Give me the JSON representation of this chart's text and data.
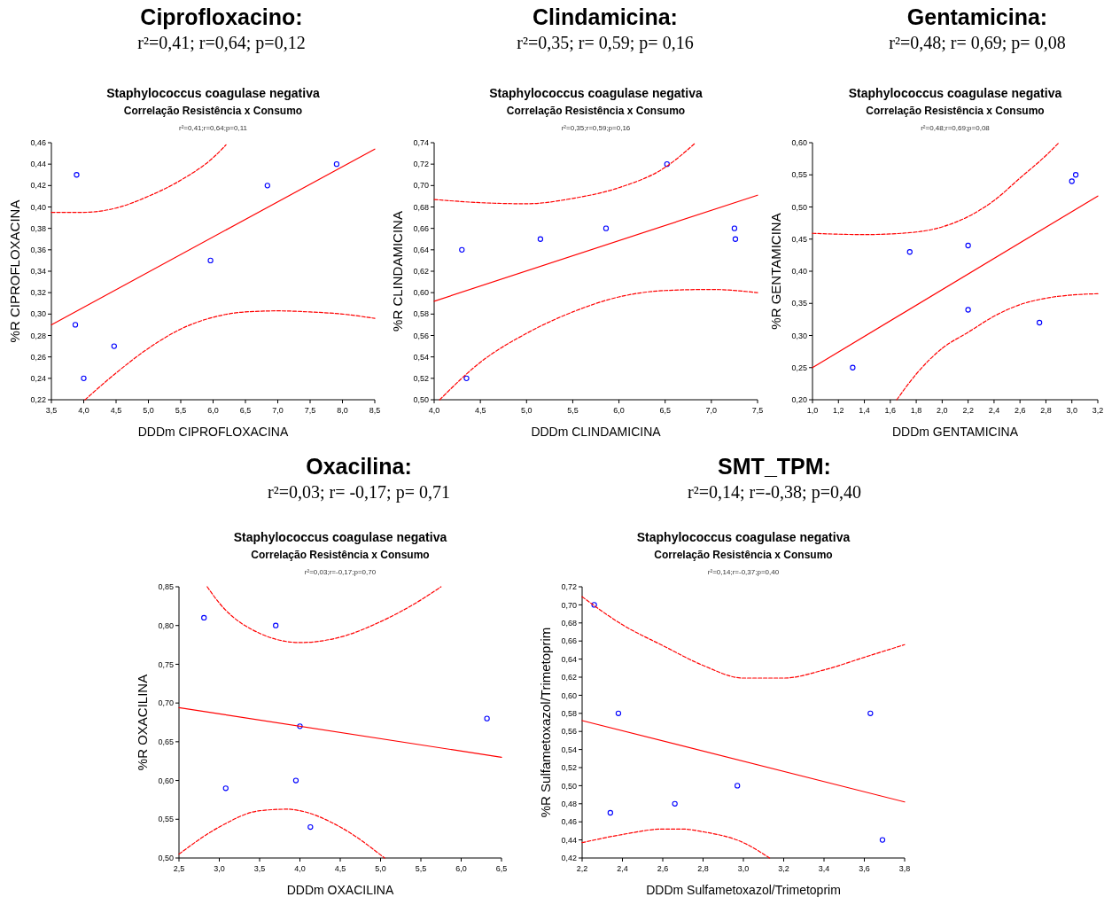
{
  "chart_data": [
    {
      "type": "scatter",
      "title": "Ciprofloxacino:",
      "subtitle": "r²=0,41; r=0,64; p=0,12",
      "annotations": [
        "Staphylococcus coagulase negativa",
        "Correlação Resistência x Consumo",
        "r²=0,41;r=0,64;p=0,11"
      ],
      "xlabel": "DDDm CIPROFLOXACINA",
      "ylabel": "%R CIPROFLOXACINA",
      "grid": false,
      "xlim": [
        3.5,
        8.5
      ],
      "xticks": [
        {
          "value": 3.5,
          "label": "3,5"
        },
        {
          "value": 4,
          "label": "4,0"
        },
        {
          "value": 4.5,
          "label": "4,5"
        },
        {
          "value": 5,
          "label": "5,0"
        },
        {
          "value": 5.5,
          "label": "5,5"
        },
        {
          "value": 6,
          "label": "6,0"
        },
        {
          "value": 6.5,
          "label": "6,5"
        },
        {
          "value": 7,
          "label": "7,0"
        },
        {
          "value": 7.5,
          "label": "7,5"
        },
        {
          "value": 8,
          "label": "8,0"
        },
        {
          "value": 8.5,
          "label": "8,5"
        }
      ],
      "ylim": [
        0.22,
        0.46
      ],
      "yticks": [
        {
          "value": 0.22,
          "label": "0,22"
        },
        {
          "value": 0.24,
          "label": "0,24"
        },
        {
          "value": 0.26,
          "label": "0,26"
        },
        {
          "value": 0.28,
          "label": "0,28"
        },
        {
          "value": 0.3,
          "label": "0,30"
        },
        {
          "value": 0.32,
          "label": "0,32"
        },
        {
          "value": 0.34,
          "label": "0,34"
        },
        {
          "value": 0.36,
          "label": "0,36"
        },
        {
          "value": 0.38,
          "label": "0,38"
        },
        {
          "value": 0.4,
          "label": "0,40"
        },
        {
          "value": 0.42,
          "label": "0,42"
        },
        {
          "value": 0.44,
          "label": "0,44"
        },
        {
          "value": 0.46,
          "label": "0,46"
        }
      ],
      "series": [
        {
          "type": "scatter",
          "marker": "circle",
          "color": "#0000ff",
          "x": [
            3.89,
            3.87,
            4.0,
            4.47,
            5.96,
            6.84,
            7.91
          ],
          "values": [
            0.43,
            0.29,
            0.24,
            0.27,
            0.35,
            0.42,
            0.44
          ]
        },
        {
          "type": "line",
          "line_style": "solid",
          "color": "#ff0000",
          "x": [
            3.5,
            8.5
          ],
          "values": [
            0.29,
            0.454
          ]
        },
        {
          "type": "line",
          "line_style": "dashed",
          "color": "#ff0000",
          "x": [
            3.5,
            4.0,
            4.5,
            5.0,
            5.5,
            6.0,
            6.2
          ],
          "values": [
            0.395,
            0.395,
            0.399,
            0.41,
            0.425,
            0.446,
            0.458
          ]
        },
        {
          "type": "line",
          "line_style": "dashed",
          "color": "#ff0000",
          "x": [
            4.02,
            4.5,
            5.0,
            5.5,
            6.0,
            6.5,
            7.0,
            7.5,
            8.0,
            8.5
          ],
          "values": [
            0.22,
            0.245,
            0.268,
            0.286,
            0.297,
            0.302,
            0.303,
            0.302,
            0.3,
            0.296
          ]
        }
      ]
    },
    {
      "type": "scatter",
      "title": "Clindamicina:",
      "subtitle": "r²=0,35; r= 0,59; p= 0,16",
      "annotations": [
        "Staphylococcus coagulase negativa",
        "Correlação Resistência x Consumo",
        "r²=0,35;r=0,59;p=0,16"
      ],
      "xlabel": "DDDm CLINDAMICINA",
      "ylabel": "%R CLINDAMICINA",
      "grid": false,
      "xlim": [
        4,
        7.5
      ],
      "xticks": [
        {
          "value": 4,
          "label": "4,0"
        },
        {
          "value": 4.5,
          "label": "4,5"
        },
        {
          "value": 5,
          "label": "5,0"
        },
        {
          "value": 5.5,
          "label": "5,5"
        },
        {
          "value": 6,
          "label": "6,0"
        },
        {
          "value": 6.5,
          "label": "6,5"
        },
        {
          "value": 7,
          "label": "7,0"
        },
        {
          "value": 7.5,
          "label": "7,5"
        }
      ],
      "ylim": [
        0.5,
        0.74
      ],
      "yticks": [
        {
          "value": 0.5,
          "label": "0,50"
        },
        {
          "value": 0.52,
          "label": "0,52"
        },
        {
          "value": 0.54,
          "label": "0,54"
        },
        {
          "value": 0.56,
          "label": "0,56"
        },
        {
          "value": 0.58,
          "label": "0,58"
        },
        {
          "value": 0.6,
          "label": "0,60"
        },
        {
          "value": 0.62,
          "label": "0,62"
        },
        {
          "value": 0.64,
          "label": "0,64"
        },
        {
          "value": 0.66,
          "label": "0,66"
        },
        {
          "value": 0.68,
          "label": "0,68"
        },
        {
          "value": 0.7,
          "label": "0,70"
        },
        {
          "value": 0.72,
          "label": "0,72"
        },
        {
          "value": 0.74,
          "label": "0,74"
        }
      ],
      "series": [
        {
          "type": "scatter",
          "marker": "circle",
          "color": "#0000ff",
          "x": [
            4.3,
            4.35,
            5.15,
            5.86,
            6.52,
            7.25,
            7.26
          ],
          "values": [
            0.64,
            0.52,
            0.65,
            0.66,
            0.72,
            0.66,
            0.65
          ]
        },
        {
          "type": "line",
          "line_style": "solid",
          "color": "#ff0000",
          "x": [
            4,
            7.5
          ],
          "values": [
            0.592,
            0.691
          ]
        },
        {
          "type": "line",
          "line_style": "dashed",
          "color": "#ff0000",
          "x": [
            4,
            4.5,
            5.0,
            5.5,
            6.0,
            6.5,
            6.83
          ],
          "values": [
            0.687,
            0.684,
            0.683,
            0.688,
            0.698,
            0.717,
            0.74
          ]
        },
        {
          "type": "line",
          "line_style": "dashed",
          "color": "#ff0000",
          "x": [
            4.06,
            4.5,
            5.0,
            5.5,
            6.0,
            6.5,
            7.0,
            7.5
          ],
          "values": [
            0.5,
            0.535,
            0.562,
            0.582,
            0.596,
            0.602,
            0.603,
            0.6
          ]
        }
      ]
    },
    {
      "type": "scatter",
      "title": "Gentamicina:",
      "subtitle": "r²=0,48; r= 0,69; p= 0,08",
      "annotations": [
        "Staphylococcus coagulase negativa",
        "Correlação Resistência x Consumo",
        "r²=0,48;r=0,69;p=0,08"
      ],
      "xlabel": "DDDm GENTAMICINA",
      "ylabel": "%R GENTAMICINA",
      "grid": false,
      "xlim": [
        1,
        3.2
      ],
      "xticks": [
        {
          "value": 1,
          "label": "1,0"
        },
        {
          "value": 1.2,
          "label": "1,2"
        },
        {
          "value": 1.4,
          "label": "1,4"
        },
        {
          "value": 1.6,
          "label": "1,6"
        },
        {
          "value": 1.8,
          "label": "1,8"
        },
        {
          "value": 2,
          "label": "2,0"
        },
        {
          "value": 2.2,
          "label": "2,2"
        },
        {
          "value": 2.4,
          "label": "2,4"
        },
        {
          "value": 2.6,
          "label": "2,6"
        },
        {
          "value": 2.8,
          "label": "2,8"
        },
        {
          "value": 3,
          "label": "3,0"
        },
        {
          "value": 3.2,
          "label": "3,2"
        }
      ],
      "ylim": [
        0.2,
        0.6
      ],
      "yticks": [
        {
          "value": 0.2,
          "label": "0,20"
        },
        {
          "value": 0.25,
          "label": "0,25"
        },
        {
          "value": 0.3,
          "label": "0,30"
        },
        {
          "value": 0.35,
          "label": "0,35"
        },
        {
          "value": 0.4,
          "label": "0,40"
        },
        {
          "value": 0.45,
          "label": "0,45"
        },
        {
          "value": 0.5,
          "label": "0,50"
        },
        {
          "value": 0.55,
          "label": "0,55"
        },
        {
          "value": 0.6,
          "label": "0,60"
        }
      ],
      "series": [
        {
          "type": "scatter",
          "marker": "circle",
          "color": "#0000ff",
          "x": [
            1.31,
            1.75,
            2.2,
            2.2,
            2.75,
            3.0,
            3.03
          ],
          "values": [
            0.25,
            0.43,
            0.44,
            0.34,
            0.32,
            0.54,
            0.55
          ]
        },
        {
          "type": "line",
          "line_style": "solid",
          "color": "#ff0000",
          "x": [
            1,
            3.2
          ],
          "values": [
            0.25,
            0.517
          ]
        },
        {
          "type": "line",
          "line_style": "dashed",
          "color": "#ff0000",
          "x": [
            1,
            1.4,
            1.8,
            2.0,
            2.2,
            2.4,
            2.6,
            2.8,
            2.9
          ],
          "values": [
            0.459,
            0.457,
            0.461,
            0.469,
            0.485,
            0.51,
            0.545,
            0.58,
            0.6
          ]
        },
        {
          "type": "line",
          "line_style": "dashed",
          "color": "#ff0000",
          "x": [
            1.65,
            1.8,
            2.0,
            2.2,
            2.4,
            2.6,
            2.8,
            3.0,
            3.2
          ],
          "values": [
            0.2,
            0.24,
            0.28,
            0.305,
            0.33,
            0.348,
            0.358,
            0.363,
            0.365
          ]
        }
      ]
    },
    {
      "type": "scatter",
      "title": "Oxacilina:",
      "subtitle": "r²=0,03; r= -0,17; p= 0,71",
      "annotations": [
        "Staphylococcus coagulase negativa",
        "Correlação Resistência x Consumo",
        "r²=0,03;r=-0,17;p=0,70"
      ],
      "xlabel": "DDDm OXACILINA",
      "ylabel": "%R OXACILINA",
      "grid": false,
      "xlim": [
        2.5,
        6.5
      ],
      "xticks": [
        {
          "value": 2.5,
          "label": "2,5"
        },
        {
          "value": 3,
          "label": "3,0"
        },
        {
          "value": 3.5,
          "label": "3,5"
        },
        {
          "value": 4,
          "label": "4,0"
        },
        {
          "value": 4.5,
          "label": "4,5"
        },
        {
          "value": 5,
          "label": "5,0"
        },
        {
          "value": 5.5,
          "label": "5,5"
        },
        {
          "value": 6,
          "label": "6,0"
        },
        {
          "value": 6.5,
          "label": "6,5"
        }
      ],
      "ylim": [
        0.5,
        0.85
      ],
      "yticks": [
        {
          "value": 0.5,
          "label": "0,50"
        },
        {
          "value": 0.55,
          "label": "0,55"
        },
        {
          "value": 0.6,
          "label": "0,60"
        },
        {
          "value": 0.65,
          "label": "0,65"
        },
        {
          "value": 0.7,
          "label": "0,70"
        },
        {
          "value": 0.75,
          "label": "0,75"
        },
        {
          "value": 0.8,
          "label": "0,80"
        },
        {
          "value": 0.85,
          "label": "0,85"
        }
      ],
      "series": [
        {
          "type": "scatter",
          "marker": "circle",
          "color": "#0000ff",
          "x": [
            2.81,
            3.08,
            3.7,
            3.95,
            4.0,
            4.13,
            6.32
          ],
          "values": [
            0.81,
            0.59,
            0.8,
            0.6,
            0.67,
            0.54,
            0.68
          ]
        },
        {
          "type": "line",
          "line_style": "solid",
          "color": "#ff0000",
          "x": [
            2.5,
            6.5
          ],
          "values": [
            0.694,
            0.63
          ]
        },
        {
          "type": "line",
          "line_style": "dashed",
          "color": "#ff0000",
          "x": [
            2.85,
            3.0,
            3.5,
            4.0,
            4.5,
            5.0,
            5.5,
            5.75
          ],
          "values": [
            0.85,
            0.829,
            0.79,
            0.778,
            0.785,
            0.805,
            0.833,
            0.85
          ]
        },
        {
          "type": "line",
          "line_style": "dashed",
          "color": "#ff0000",
          "x": [
            2.5,
            3.0,
            3.5,
            3.85,
            4.0,
            4.5,
            5.05
          ],
          "values": [
            0.505,
            0.54,
            0.561,
            0.563,
            0.561,
            0.54,
            0.5
          ]
        }
      ]
    },
    {
      "type": "scatter",
      "title": "SMT_TPM:",
      "subtitle": "r²=0,14; r=-0,38; p=0,40",
      "annotations": [
        "Staphylococcus coagulase negativa",
        "Correlação Resistência x Consumo",
        "r²=0,14;r=-0,37;p=0,40"
      ],
      "xlabel": "DDDm Sulfametoxazol/Trimetoprim",
      "ylabel": "%R Sulfametoxazol/Trimetoprim",
      "grid": false,
      "xlim": [
        2.2,
        3.8
      ],
      "xticks": [
        {
          "value": 2.2,
          "label": "2,2"
        },
        {
          "value": 2.4,
          "label": "2,4"
        },
        {
          "value": 2.6,
          "label": "2,6"
        },
        {
          "value": 2.8,
          "label": "2,8"
        },
        {
          "value": 3,
          "label": "3,0"
        },
        {
          "value": 3.2,
          "label": "3,2"
        },
        {
          "value": 3.4,
          "label": "3,4"
        },
        {
          "value": 3.6,
          "label": "3,6"
        },
        {
          "value": 3.8,
          "label": "3,8"
        }
      ],
      "ylim": [
        0.42,
        0.72
      ],
      "yticks": [
        {
          "value": 0.42,
          "label": "0,42"
        },
        {
          "value": 0.44,
          "label": "0,44"
        },
        {
          "value": 0.46,
          "label": "0,46"
        },
        {
          "value": 0.48,
          "label": "0,48"
        },
        {
          "value": 0.5,
          "label": "0,50"
        },
        {
          "value": 0.52,
          "label": "0,52"
        },
        {
          "value": 0.54,
          "label": "0,54"
        },
        {
          "value": 0.56,
          "label": "0,56"
        },
        {
          "value": 0.58,
          "label": "0,58"
        },
        {
          "value": 0.6,
          "label": "0,60"
        },
        {
          "value": 0.62,
          "label": "0,62"
        },
        {
          "value": 0.64,
          "label": "0,64"
        },
        {
          "value": 0.66,
          "label": "0,66"
        },
        {
          "value": 0.68,
          "label": "0,68"
        },
        {
          "value": 0.7,
          "label": "0,70"
        },
        {
          "value": 0.72,
          "label": "0,72"
        }
      ],
      "series": [
        {
          "type": "scatter",
          "marker": "circle",
          "color": "#0000ff",
          "x": [
            2.26,
            2.34,
            2.38,
            2.66,
            2.97,
            3.63,
            3.69
          ],
          "values": [
            0.7,
            0.47,
            0.58,
            0.48,
            0.5,
            0.58,
            0.44
          ]
        },
        {
          "type": "line",
          "line_style": "solid",
          "color": "#ff0000",
          "x": [
            2.2,
            3.8
          ],
          "values": [
            0.572,
            0.482
          ]
        },
        {
          "type": "line",
          "line_style": "dashed",
          "color": "#ff0000",
          "x": [
            2.2,
            2.4,
            2.6,
            2.8,
            3.0,
            3.2,
            3.4,
            3.6,
            3.8
          ],
          "values": [
            0.709,
            0.678,
            0.655,
            0.633,
            0.619,
            0.619,
            0.628,
            0.642,
            0.656
          ]
        },
        {
          "type": "line",
          "line_style": "dashed",
          "color": "#ff0000",
          "x": [
            2.2,
            2.4,
            2.6,
            2.7,
            2.8,
            3.0,
            3.13
          ],
          "values": [
            0.437,
            0.446,
            0.452,
            0.452,
            0.449,
            0.437,
            0.42
          ]
        }
      ]
    }
  ]
}
